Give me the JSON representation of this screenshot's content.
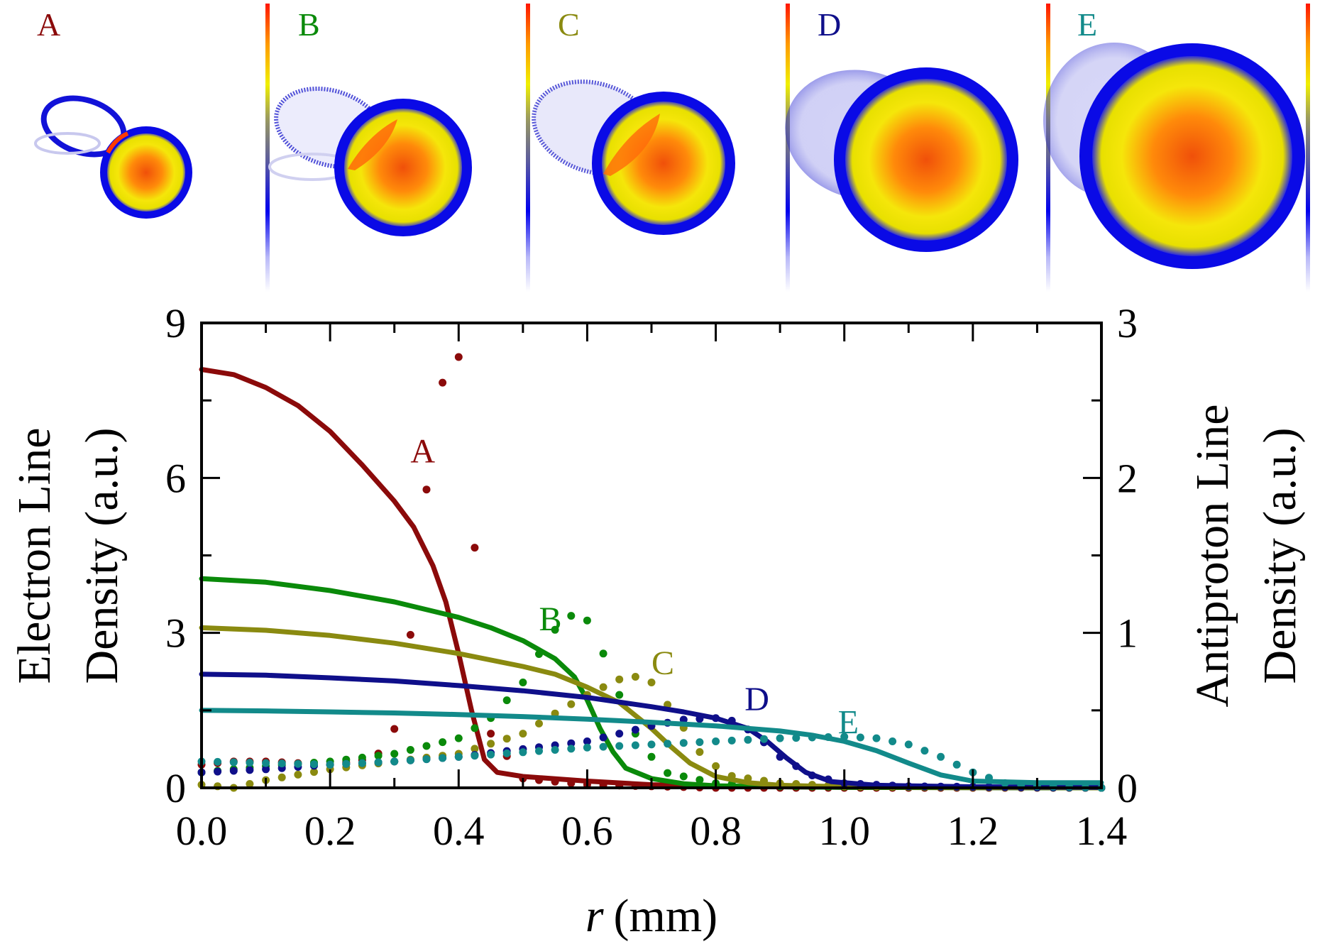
{
  "panels": [
    {
      "letter": "A",
      "color": "#8b0a0a"
    },
    {
      "letter": "B",
      "color": "#0a8a0a"
    },
    {
      "letter": "C",
      "color": "#8a8a10"
    },
    {
      "letter": "D",
      "color": "#0f0f8a"
    },
    {
      "letter": "E",
      "color": "#128a8a"
    }
  ],
  "chart_data": {
    "type": "line",
    "title": "",
    "xlabel_var": "r",
    "xlabel_unit": "(mm)",
    "ylabel_left_line1": "Electron Line",
    "ylabel_left_line2": "Density (a.u.)",
    "ylabel_right_line1": "Antiproton Line",
    "ylabel_right_line2": "Density (a.u.)",
    "xlim": [
      0.0,
      1.4
    ],
    "ylim_left": [
      0,
      9
    ],
    "ylim_right": [
      0,
      3
    ],
    "xticks": [
      "0.0",
      "0.2",
      "0.4",
      "0.6",
      "0.8",
      "1.0",
      "1.2",
      "1.4"
    ],
    "xtick_values": [
      0.0,
      0.2,
      0.4,
      0.6,
      0.8,
      1.0,
      1.2,
      1.4
    ],
    "yticks_left": [
      "0",
      "3",
      "6",
      "9"
    ],
    "yticks_left_values": [
      0,
      3,
      6,
      9
    ],
    "yticks_right": [
      "0",
      "1",
      "2",
      "3"
    ],
    "yticks_right_values": [
      0,
      1,
      2,
      3
    ],
    "series": [
      {
        "name": "A",
        "color": "#8b0a0a",
        "label_at": {
          "x": 0.325,
          "y": 6.3
        },
        "electron": [
          [
            0,
            8.1
          ],
          [
            0.05,
            8.0
          ],
          [
            0.1,
            7.75
          ],
          [
            0.15,
            7.4
          ],
          [
            0.2,
            6.9
          ],
          [
            0.25,
            6.25
          ],
          [
            0.3,
            5.55
          ],
          [
            0.33,
            5.05
          ],
          [
            0.36,
            4.3
          ],
          [
            0.38,
            3.6
          ],
          [
            0.4,
            2.6
          ],
          [
            0.42,
            1.5
          ],
          [
            0.44,
            0.55
          ],
          [
            0.46,
            0.3
          ],
          [
            0.5,
            0.22
          ],
          [
            0.6,
            0.13
          ],
          [
            0.7,
            0.06
          ],
          [
            0.8,
            0.03
          ],
          [
            0.9,
            0.02
          ],
          [
            1.0,
            0.01
          ],
          [
            1.4,
            0.0
          ]
        ],
        "antiproton": [
          [
            0,
            0.15
          ],
          [
            0.05,
            0.17
          ],
          [
            0.1,
            0.17
          ],
          [
            0.15,
            0.16
          ],
          [
            0.2,
            0.15
          ],
          [
            0.25,
            0.18
          ],
          [
            0.28,
            0.23
          ],
          [
            0.3,
            0.38
          ],
          [
            0.32,
            0.8
          ],
          [
            0.34,
            1.55
          ],
          [
            0.36,
            2.3
          ],
          [
            0.38,
            2.72
          ],
          [
            0.39,
            2.78
          ],
          [
            0.4,
            2.78
          ],
          [
            0.41,
            2.6
          ],
          [
            0.43,
            1.2
          ],
          [
            0.45,
            0.35
          ],
          [
            0.5,
            0.06
          ],
          [
            0.6,
            0.02
          ],
          [
            0.8,
            0.0
          ],
          [
            1.4,
            0.0
          ]
        ]
      },
      {
        "name": "B",
        "color": "#0a8a0a",
        "label_at": {
          "x": 0.525,
          "y": 3.05
        },
        "electron": [
          [
            0,
            4.05
          ],
          [
            0.1,
            3.98
          ],
          [
            0.2,
            3.82
          ],
          [
            0.3,
            3.6
          ],
          [
            0.4,
            3.3
          ],
          [
            0.45,
            3.1
          ],
          [
            0.5,
            2.85
          ],
          [
            0.55,
            2.5
          ],
          [
            0.58,
            2.15
          ],
          [
            0.6,
            1.7
          ],
          [
            0.62,
            1.15
          ],
          [
            0.64,
            0.7
          ],
          [
            0.66,
            0.38
          ],
          [
            0.7,
            0.18
          ],
          [
            0.75,
            0.08
          ],
          [
            0.8,
            0.04
          ],
          [
            0.9,
            0.02
          ],
          [
            1.0,
            0.01
          ],
          [
            1.4,
            0.0
          ]
        ],
        "antiproton": [
          [
            0,
            0.1
          ],
          [
            0.1,
            0.14
          ],
          [
            0.2,
            0.17
          ],
          [
            0.3,
            0.22
          ],
          [
            0.4,
            0.32
          ],
          [
            0.45,
            0.45
          ],
          [
            0.5,
            0.68
          ],
          [
            0.53,
            0.9
          ],
          [
            0.56,
            1.08
          ],
          [
            0.58,
            1.12
          ],
          [
            0.6,
            1.08
          ],
          [
            0.62,
            0.92
          ],
          [
            0.65,
            0.6
          ],
          [
            0.68,
            0.3
          ],
          [
            0.72,
            0.1
          ],
          [
            0.8,
            0.03
          ],
          [
            0.9,
            0.01
          ],
          [
            1.4,
            0.0
          ]
        ]
      },
      {
        "name": "C",
        "color": "#8a8a10",
        "label_at": {
          "x": 0.7,
          "y": 2.2
        },
        "electron": [
          [
            0,
            3.1
          ],
          [
            0.1,
            3.05
          ],
          [
            0.2,
            2.95
          ],
          [
            0.3,
            2.8
          ],
          [
            0.4,
            2.6
          ],
          [
            0.5,
            2.35
          ],
          [
            0.55,
            2.2
          ],
          [
            0.6,
            1.95
          ],
          [
            0.65,
            1.65
          ],
          [
            0.7,
            1.15
          ],
          [
            0.73,
            0.8
          ],
          [
            0.76,
            0.48
          ],
          [
            0.8,
            0.22
          ],
          [
            0.85,
            0.1
          ],
          [
            0.9,
            0.05
          ],
          [
            1.0,
            0.02
          ],
          [
            1.4,
            0.0
          ]
        ],
        "antiproton": [
          [
            0,
            0.02
          ],
          [
            0.05,
            0.0
          ],
          [
            0.1,
            0.05
          ],
          [
            0.2,
            0.12
          ],
          [
            0.3,
            0.17
          ],
          [
            0.4,
            0.22
          ],
          [
            0.5,
            0.35
          ],
          [
            0.55,
            0.48
          ],
          [
            0.6,
            0.6
          ],
          [
            0.65,
            0.7
          ],
          [
            0.68,
            0.72
          ],
          [
            0.7,
            0.68
          ],
          [
            0.74,
            0.45
          ],
          [
            0.78,
            0.2
          ],
          [
            0.82,
            0.08
          ],
          [
            0.9,
            0.03
          ],
          [
            1.0,
            0.01
          ],
          [
            1.4,
            0.0
          ]
        ]
      },
      {
        "name": "D",
        "color": "#0f0f8a",
        "label_at": {
          "x": 0.845,
          "y": 1.5
        },
        "electron": [
          [
            0,
            2.2
          ],
          [
            0.1,
            2.18
          ],
          [
            0.2,
            2.13
          ],
          [
            0.3,
            2.07
          ],
          [
            0.4,
            1.98
          ],
          [
            0.5,
            1.88
          ],
          [
            0.6,
            1.75
          ],
          [
            0.7,
            1.57
          ],
          [
            0.75,
            1.47
          ],
          [
            0.8,
            1.35
          ],
          [
            0.85,
            1.15
          ],
          [
            0.88,
            0.9
          ],
          [
            0.91,
            0.58
          ],
          [
            0.94,
            0.3
          ],
          [
            0.98,
            0.12
          ],
          [
            1.05,
            0.05
          ],
          [
            1.2,
            0.02
          ],
          [
            1.4,
            0.01
          ]
        ],
        "antiproton": [
          [
            0,
            0.1
          ],
          [
            0.1,
            0.12
          ],
          [
            0.2,
            0.15
          ],
          [
            0.3,
            0.17
          ],
          [
            0.4,
            0.2
          ],
          [
            0.5,
            0.25
          ],
          [
            0.6,
            0.3
          ],
          [
            0.65,
            0.35
          ],
          [
            0.7,
            0.4
          ],
          [
            0.75,
            0.44
          ],
          [
            0.8,
            0.45
          ],
          [
            0.83,
            0.43
          ],
          [
            0.86,
            0.35
          ],
          [
            0.9,
            0.2
          ],
          [
            0.95,
            0.08
          ],
          [
            1.0,
            0.03
          ],
          [
            1.1,
            0.01
          ],
          [
            1.4,
            0.0
          ]
        ]
      },
      {
        "name": "E",
        "color": "#128a8a",
        "label_at": {
          "x": 0.99,
          "y": 1.05
        },
        "electron": [
          [
            0,
            1.5
          ],
          [
            0.1,
            1.49
          ],
          [
            0.2,
            1.47
          ],
          [
            0.3,
            1.45
          ],
          [
            0.4,
            1.42
          ],
          [
            0.5,
            1.38
          ],
          [
            0.6,
            1.33
          ],
          [
            0.7,
            1.27
          ],
          [
            0.8,
            1.2
          ],
          [
            0.9,
            1.1
          ],
          [
            0.95,
            1.02
          ],
          [
            1.0,
            0.9
          ],
          [
            1.05,
            0.72
          ],
          [
            1.1,
            0.48
          ],
          [
            1.15,
            0.25
          ],
          [
            1.2,
            0.13
          ],
          [
            1.3,
            0.1
          ],
          [
            1.4,
            0.1
          ]
        ],
        "antiproton": [
          [
            0,
            0.17
          ],
          [
            0.1,
            0.16
          ],
          [
            0.2,
            0.15
          ],
          [
            0.3,
            0.17
          ],
          [
            0.4,
            0.2
          ],
          [
            0.5,
            0.23
          ],
          [
            0.6,
            0.26
          ],
          [
            0.7,
            0.28
          ],
          [
            0.8,
            0.3
          ],
          [
            0.9,
            0.32
          ],
          [
            1.0,
            0.33
          ],
          [
            1.05,
            0.32
          ],
          [
            1.1,
            0.28
          ],
          [
            1.15,
            0.2
          ],
          [
            1.2,
            0.1
          ],
          [
            1.25,
            0.03
          ],
          [
            1.3,
            0.01
          ],
          [
            1.4,
            0.0
          ]
        ]
      }
    ]
  }
}
